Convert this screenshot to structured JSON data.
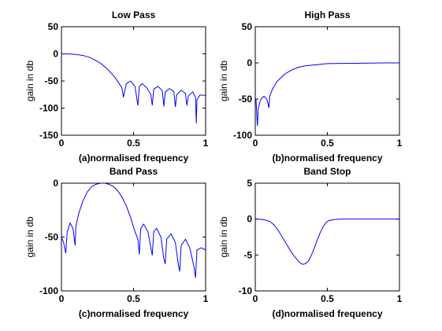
{
  "chart_data": [
    {
      "type": "line",
      "title": "Low Pass",
      "xlabel": "(a)normalised frequency",
      "ylabel": "gain in db",
      "xlim": [
        0,
        1
      ],
      "ylim": [
        -150,
        50
      ],
      "xticks": [
        "0",
        "0.5",
        "1"
      ],
      "yticks": [
        "50",
        "0",
        "-50",
        "-100",
        "-150"
      ],
      "xtick_values": [
        0,
        0.5,
        1
      ],
      "ytick_values": [
        50,
        0,
        -50,
        -100,
        -150
      ],
      "grid": false,
      "color": "#0000ff",
      "series": [
        {
          "x": [
            0,
            0.05,
            0.1,
            0.15,
            0.2,
            0.25,
            0.28,
            0.31,
            0.34,
            0.37,
            0.4,
            0.42,
            0.43,
            0.45,
            0.48,
            0.51,
            0.53,
            0.54,
            0.56,
            0.59,
            0.62,
            0.63,
            0.64,
            0.67,
            0.7,
            0.71,
            0.72,
            0.75,
            0.78,
            0.79,
            0.8,
            0.83,
            0.86,
            0.87,
            0.88,
            0.91,
            0.93,
            0.935,
            0.94,
            0.96,
            0.98,
            1.0
          ],
          "y": [
            0,
            -0.2,
            -1,
            -3,
            -7,
            -14,
            -19,
            -26,
            -34,
            -43,
            -55,
            -63,
            -80,
            -55,
            -50,
            -60,
            -95,
            -60,
            -55,
            -62,
            -75,
            -95,
            -65,
            -60,
            -68,
            -97,
            -70,
            -64,
            -70,
            -98,
            -75,
            -67,
            -73,
            -95,
            -78,
            -70,
            -80,
            -128,
            -85,
            -76,
            -76,
            -77
          ]
        }
      ]
    },
    {
      "type": "line",
      "title": "High Pass",
      "xlabel": "(b)normalised frequency",
      "ylabel": "gain in db",
      "xlim": [
        0,
        1
      ],
      "ylim": [
        -100,
        50
      ],
      "xticks": [
        "0",
        "0.5",
        "1"
      ],
      "yticks": [
        "50",
        "0",
        "-50",
        "-100"
      ],
      "xtick_values": [
        0,
        0.5,
        1
      ],
      "ytick_values": [
        50,
        0,
        -50,
        -100
      ],
      "grid": false,
      "color": "#0000ff",
      "series": [
        {
          "x": [
            0,
            0.005,
            0.01,
            0.015,
            0.02,
            0.03,
            0.04,
            0.06,
            0.08,
            0.09,
            0.095,
            0.1,
            0.12,
            0.15,
            0.2,
            0.25,
            0.3,
            0.35,
            0.4,
            0.45,
            0.5,
            0.6,
            0.7,
            0.8,
            0.9,
            1.0
          ],
          "y": [
            -55,
            -50,
            -70,
            -87,
            -65,
            -55,
            -50,
            -46,
            -50,
            -58,
            -62,
            -46,
            -36,
            -26,
            -16,
            -10,
            -6,
            -4,
            -3,
            -2,
            -1,
            -0.7,
            -0.5,
            -0.3,
            0,
            0
          ]
        }
      ]
    },
    {
      "type": "line",
      "title": "Band Pass",
      "xlabel": "(c)normalised frequency",
      "ylabel": "gain in db",
      "xlim": [
        0,
        1
      ],
      "ylim": [
        -100,
        0
      ],
      "xticks": [
        "0",
        "0.5",
        "1"
      ],
      "yticks": [
        "0",
        "-50",
        "-100"
      ],
      "xtick_values": [
        0,
        0.5,
        1
      ],
      "ytick_values": [
        0,
        -50,
        -100
      ],
      "grid": false,
      "color": "#0000ff",
      "series": [
        {
          "x": [
            0,
            0.015,
            0.03,
            0.04,
            0.06,
            0.08,
            0.095,
            0.1,
            0.12,
            0.15,
            0.18,
            0.21,
            0.24,
            0.27,
            0.3,
            0.33,
            0.36,
            0.39,
            0.42,
            0.45,
            0.48,
            0.51,
            0.53,
            0.54,
            0.55,
            0.57,
            0.6,
            0.62,
            0.63,
            0.64,
            0.66,
            0.69,
            0.71,
            0.72,
            0.73,
            0.76,
            0.79,
            0.81,
            0.82,
            0.83,
            0.86,
            0.89,
            0.92,
            0.93,
            0.94,
            0.97,
            1.0
          ],
          "y": [
            -50,
            -55,
            -65,
            -45,
            -37,
            -42,
            -58,
            -40,
            -28,
            -16,
            -8,
            -3,
            -1,
            0,
            0,
            -1,
            -3,
            -7,
            -13,
            -21,
            -32,
            -45,
            -52,
            -66,
            -42,
            -38,
            -45,
            -60,
            -67,
            -45,
            -42,
            -50,
            -70,
            -75,
            -52,
            -47,
            -55,
            -75,
            -82,
            -58,
            -52,
            -60,
            -78,
            -88,
            -62,
            -60,
            -62
          ]
        }
      ]
    },
    {
      "type": "line",
      "title": "Band Stop",
      "xlabel": "(d)normalised frequency",
      "ylabel": "gain in db",
      "xlim": [
        0,
        1
      ],
      "ylim": [
        -10,
        5
      ],
      "xticks": [
        "0",
        "0.5",
        "1"
      ],
      "yticks": [
        "5",
        "0",
        "-5",
        "-10"
      ],
      "xtick_values": [
        0,
        0.5,
        1
      ],
      "ytick_values": [
        5,
        0,
        -5,
        -10
      ],
      "grid": false,
      "color": "#0000ff",
      "series": [
        {
          "x": [
            0,
            0.05,
            0.1,
            0.13,
            0.16,
            0.19,
            0.22,
            0.25,
            0.28,
            0.3,
            0.32,
            0.33,
            0.35,
            0.37,
            0.39,
            0.41,
            0.43,
            0.45,
            0.47,
            0.49,
            0.51,
            0.55,
            0.6,
            0.7,
            0.8,
            0.9,
            1.0
          ],
          "y": [
            0,
            -0.05,
            -0.3,
            -0.8,
            -1.6,
            -2.6,
            -3.6,
            -4.6,
            -5.4,
            -5.9,
            -6.2,
            -6.3,
            -6.2,
            -5.8,
            -5.0,
            -4.0,
            -2.9,
            -1.9,
            -1.1,
            -0.5,
            -0.2,
            -0.05,
            0,
            0,
            0,
            0,
            0
          ]
        }
      ]
    }
  ]
}
